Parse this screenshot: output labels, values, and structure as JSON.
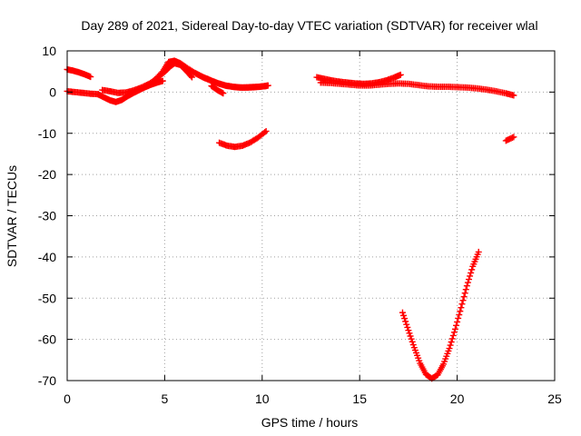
{
  "chart_data": {
    "type": "scatter",
    "title": "Day 289 of 2021, Sidereal Day-to-day VTEC variation (SDTVAR) for receiver wlal",
    "xlabel": "GPS time / hours",
    "ylabel": "SDTVAR / TECUs",
    "xlim": [
      0,
      25
    ],
    "ylim": [
      -70,
      10
    ],
    "x_ticks": [
      "0",
      "5",
      "10",
      "15",
      "20",
      "25"
    ],
    "y_ticks": [
      "10",
      "0",
      "-10",
      "-20",
      "-30",
      "-40",
      "-50",
      "-60",
      "-70"
    ],
    "grid": true,
    "marker": "+",
    "colors": {
      "series": "#ff0000"
    },
    "series": [
      {
        "points": [
          [
            0.0,
            5.5
          ],
          [
            0.3,
            5.2
          ],
          [
            0.6,
            4.8
          ],
          [
            0.9,
            4.3
          ],
          [
            1.2,
            3.7
          ]
        ]
      },
      {
        "points": [
          [
            0.0,
            0.2
          ],
          [
            0.4,
            0.0
          ],
          [
            0.8,
            -0.2
          ],
          [
            1.2,
            -0.4
          ],
          [
            1.6,
            -0.5
          ]
        ]
      },
      {
        "points": [
          [
            1.6,
            -0.6
          ],
          [
            1.9,
            -1.3
          ],
          [
            2.2,
            -2.0
          ],
          [
            2.5,
            -2.4
          ],
          [
            2.8,
            -1.9
          ],
          [
            3.1,
            -1.0
          ],
          [
            3.4,
            -0.2
          ],
          [
            3.7,
            0.5
          ],
          [
            4.0,
            1.2
          ],
          [
            4.3,
            1.8
          ],
          [
            4.6,
            2.3
          ],
          [
            4.9,
            2.7
          ]
        ]
      },
      {
        "points": [
          [
            1.8,
            0.5
          ],
          [
            2.2,
            0.2
          ],
          [
            2.6,
            -0.2
          ],
          [
            3.0,
            -0.1
          ],
          [
            3.4,
            0.4
          ],
          [
            3.8,
            1.1
          ],
          [
            4.2,
            2.0
          ],
          [
            4.6,
            3.3
          ],
          [
            5.0,
            4.9
          ],
          [
            5.3,
            6.3
          ],
          [
            5.5,
            7.0
          ],
          [
            5.8,
            6.6
          ],
          [
            6.1,
            5.2
          ],
          [
            6.4,
            3.6
          ]
        ]
      },
      {
        "points": [
          [
            4.5,
            3.0
          ],
          [
            4.9,
            5.0
          ],
          [
            5.2,
            7.3
          ],
          [
            5.5,
            7.6
          ],
          [
            5.8,
            7.0
          ],
          [
            6.1,
            6.0
          ],
          [
            6.5,
            4.8
          ],
          [
            6.9,
            3.8
          ],
          [
            7.3,
            3.0
          ],
          [
            7.7,
            2.2
          ],
          [
            8.1,
            1.6
          ],
          [
            8.5,
            1.3
          ],
          [
            8.9,
            1.1
          ],
          [
            9.3,
            1.1
          ],
          [
            9.7,
            1.2
          ],
          [
            10.1,
            1.4
          ],
          [
            10.3,
            1.6
          ]
        ]
      },
      {
        "points": [
          [
            6.6,
            4.5
          ],
          [
            7.0,
            3.5
          ],
          [
            7.4,
            2.7
          ],
          [
            7.8,
            2.0
          ],
          [
            8.2,
            1.5
          ],
          [
            8.6,
            1.2
          ],
          [
            9.0,
            1.1
          ],
          [
            9.4,
            1.2
          ],
          [
            9.8,
            1.3
          ],
          [
            10.2,
            1.5
          ]
        ]
      },
      {
        "points": [
          [
            7.4,
            1.5
          ],
          [
            7.7,
            0.5
          ],
          [
            8.0,
            -0.3
          ]
        ]
      },
      {
        "points": [
          [
            7.8,
            -12.3
          ],
          [
            8.2,
            -13.0
          ],
          [
            8.6,
            -13.3
          ],
          [
            9.0,
            -13.0
          ],
          [
            9.4,
            -12.2
          ],
          [
            9.8,
            -11.0
          ],
          [
            10.2,
            -9.5
          ]
        ]
      },
      {
        "points": [
          [
            12.8,
            3.6
          ],
          [
            13.2,
            3.2
          ],
          [
            13.6,
            2.8
          ],
          [
            14.0,
            2.5
          ],
          [
            14.4,
            2.3
          ],
          [
            14.8,
            2.1
          ],
          [
            15.2,
            2.0
          ],
          [
            15.6,
            2.1
          ],
          [
            16.0,
            2.4
          ],
          [
            16.4,
            2.9
          ],
          [
            16.8,
            3.6
          ],
          [
            17.1,
            4.2
          ]
        ]
      },
      {
        "points": [
          [
            13.0,
            2.3
          ],
          [
            13.5,
            2.2
          ],
          [
            14.0,
            2.0
          ],
          [
            14.5,
            1.8
          ],
          [
            15.0,
            1.6
          ],
          [
            15.5,
            1.6
          ],
          [
            16.0,
            1.8
          ],
          [
            16.5,
            2.0
          ],
          [
            17.0,
            2.1
          ],
          [
            17.5,
            2.0
          ],
          [
            18.0,
            1.7
          ],
          [
            18.5,
            1.4
          ],
          [
            19.0,
            1.3
          ],
          [
            19.5,
            1.3
          ],
          [
            20.0,
            1.2
          ],
          [
            20.5,
            1.1
          ],
          [
            21.0,
            0.9
          ],
          [
            21.5,
            0.6
          ],
          [
            22.0,
            0.2
          ],
          [
            22.5,
            -0.3
          ],
          [
            22.9,
            -0.8
          ]
        ]
      },
      {
        "points": [
          [
            17.2,
            -53.5
          ],
          [
            17.5,
            -57.8
          ],
          [
            17.8,
            -62.0
          ],
          [
            18.1,
            -65.8
          ],
          [
            18.4,
            -68.5
          ],
          [
            18.7,
            -69.5
          ],
          [
            19.0,
            -68.6
          ],
          [
            19.3,
            -66.0
          ],
          [
            19.6,
            -62.2
          ],
          [
            19.9,
            -57.5
          ],
          [
            20.2,
            -52.3
          ],
          [
            20.5,
            -47.0
          ],
          [
            20.8,
            -42.3
          ],
          [
            21.1,
            -38.8
          ]
        ]
      },
      {
        "points": [
          [
            22.5,
            -11.8
          ],
          [
            22.9,
            -10.9
          ]
        ]
      }
    ]
  }
}
